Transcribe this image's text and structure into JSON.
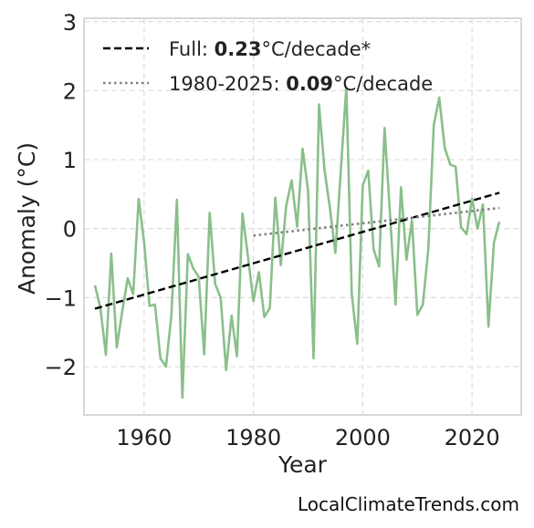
{
  "chart_data": {
    "type": "line",
    "xlabel": "Year",
    "ylabel": "Anomaly (°C)",
    "xlim": [
      1949,
      2029
    ],
    "ylim": [
      -2.7,
      3.05
    ],
    "x_ticks": [
      1960,
      1980,
      2000,
      2020
    ],
    "y_ticks": [
      -2,
      -1,
      0,
      1,
      2,
      3
    ],
    "y_tick_labels": [
      "−2",
      "−1",
      "0",
      "1",
      "2",
      "3"
    ],
    "grid": true,
    "legend_position": "top-left",
    "series": [
      {
        "name": "",
        "color": "#8abf8a",
        "x": [
          1951,
          1952,
          1953,
          1954,
          1955,
          1956,
          1957,
          1958,
          1959,
          1960,
          1961,
          1962,
          1963,
          1964,
          1965,
          1966,
          1967,
          1968,
          1969,
          1970,
          1971,
          1972,
          1973,
          1974,
          1975,
          1976,
          1977,
          1978,
          1979,
          1980,
          1981,
          1982,
          1983,
          1984,
          1985,
          1986,
          1987,
          1988,
          1989,
          1990,
          1991,
          1992,
          1993,
          1994,
          1995,
          1996,
          1997,
          1998,
          1999,
          2000,
          2001,
          2002,
          2003,
          2004,
          2005,
          2006,
          2007,
          2008,
          2009,
          2010,
          2011,
          2012,
          2013,
          2014,
          2015,
          2016,
          2017,
          2018,
          2019,
          2020,
          2021,
          2022,
          2023,
          2024,
          2025
        ],
        "values": [
          -0.82,
          -1.15,
          -1.83,
          -0.36,
          -1.72,
          -1.2,
          -0.72,
          -0.95,
          0.43,
          -0.2,
          -1.12,
          -1.1,
          -1.88,
          -2.0,
          -1.25,
          0.42,
          -2.45,
          -0.37,
          -0.58,
          -0.7,
          -1.82,
          0.23,
          -0.8,
          -1.0,
          -2.05,
          -1.26,
          -1.85,
          0.22,
          -0.4,
          -1.05,
          -0.63,
          -1.28,
          -1.15,
          0.45,
          -0.53,
          0.33,
          0.7,
          0.03,
          1.16,
          0.55,
          -1.88,
          1.8,
          0.85,
          0.3,
          -0.35,
          0.85,
          2.05,
          -0.95,
          -1.67,
          0.63,
          0.84,
          -0.3,
          -0.55,
          1.46,
          0.2,
          -1.1,
          0.6,
          -0.45,
          0.12,
          -1.25,
          -1.1,
          -0.3,
          1.5,
          1.9,
          1.17,
          0.93,
          0.9,
          0.02,
          -0.08,
          0.44,
          0.0,
          0.35,
          -1.42,
          -0.2,
          0.1
        ]
      }
    ],
    "trends": [
      {
        "label_prefix": "Full: ",
        "rate": "0.23",
        "label_suffix": "°C/decade*",
        "style": "dashed",
        "color": "#000000",
        "x": [
          1951,
          2025
        ],
        "y": [
          -1.16,
          0.52
        ]
      },
      {
        "label_prefix": "1980-2025: ",
        "rate": "0.09",
        "label_suffix": "°C/decade",
        "style": "dotted",
        "color": "#808080",
        "x": [
          1980,
          2025
        ],
        "y": [
          -0.1,
          0.3
        ]
      }
    ]
  },
  "watermark": "LocalClimateTrends.com"
}
